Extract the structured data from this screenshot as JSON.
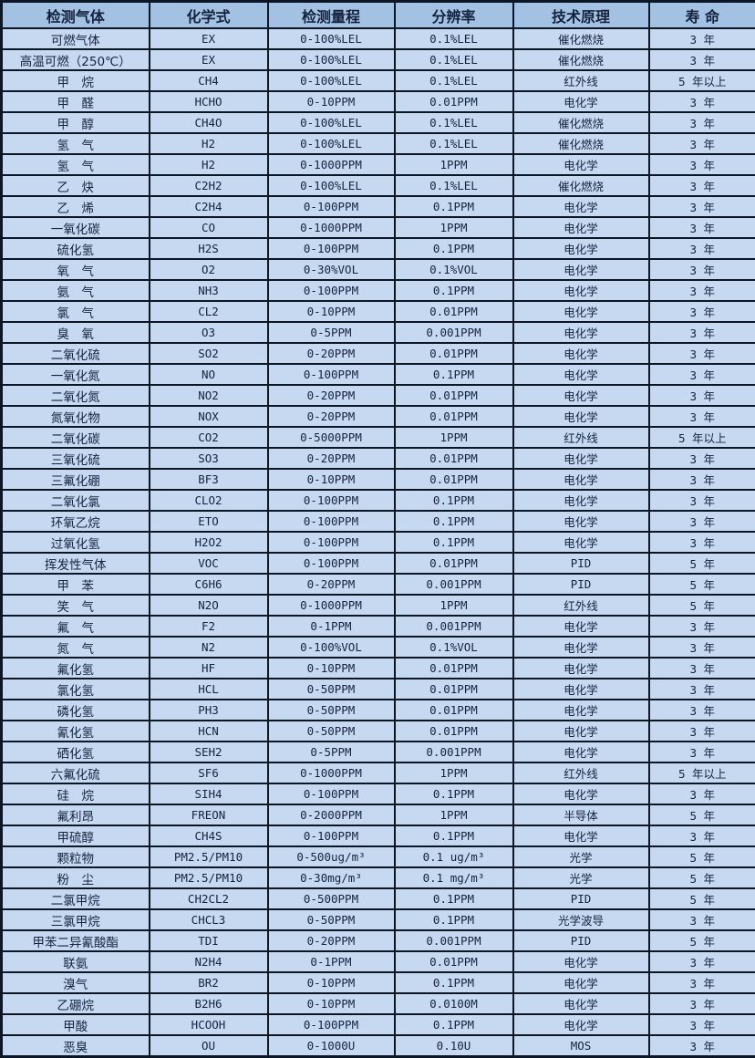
{
  "colors": {
    "header_bg": "#a3c2e3",
    "row_bg": "#c6d9f1",
    "border": "#0b1626",
    "text": "#16233f"
  },
  "table": {
    "columns": [
      "检测气体",
      "化学式",
      "检测量程",
      "分辨率",
      "技术原理",
      "寿  命"
    ],
    "rows": [
      [
        "可燃气体",
        "EX",
        "0-100%LEL",
        "0.1%LEL",
        "催化燃烧",
        "3 年"
      ],
      [
        "高温可燃（250℃）",
        "EX",
        "0-100%LEL",
        "0.1%LEL",
        "催化燃烧",
        "3 年"
      ],
      [
        "甲　烷",
        "CH4",
        "0-100%LEL",
        "0.1%LEL",
        "红外线",
        "5 年以上"
      ],
      [
        "甲　醛",
        "HCHO",
        "0-10PPM",
        "0.01PPM",
        "电化学",
        "3 年"
      ],
      [
        "甲　醇",
        "CH4O",
        "0-100%LEL",
        "0.1%LEL",
        "催化燃烧",
        "3 年"
      ],
      [
        "氢　气",
        "H2",
        "0-100%LEL",
        "0.1%LEL",
        "催化燃烧",
        "3 年"
      ],
      [
        "氢　气",
        "H2",
        "0-1000PPM",
        "1PPM",
        "电化学",
        "3 年"
      ],
      [
        "乙　炔",
        "C2H2",
        "0-100%LEL",
        "0.1%LEL",
        "催化燃烧",
        "3 年"
      ],
      [
        "乙　烯",
        "C2H4",
        "0-100PPM",
        "0.1PPM",
        "电化学",
        "3 年"
      ],
      [
        "一氧化碳",
        "CO",
        "0-1000PPM",
        "1PPM",
        "电化学",
        "3 年"
      ],
      [
        "硫化氢",
        "H2S",
        "0-100PPM",
        "0.1PPM",
        "电化学",
        "3 年"
      ],
      [
        "氧　气",
        "O2",
        "0-30%VOL",
        "0.1%VOL",
        "电化学",
        "3 年"
      ],
      [
        "氨　气",
        "NH3",
        "0-100PPM",
        "0.1PPM",
        "电化学",
        "3 年"
      ],
      [
        "氯　气",
        "CL2",
        "0-10PPM",
        "0.01PPM",
        "电化学",
        "3 年"
      ],
      [
        "臭　氧",
        "O3",
        "0-5PPM",
        "0.001PPM",
        "电化学",
        "3 年"
      ],
      [
        "二氧化硫",
        "SO2",
        "0-20PPM",
        "0.01PPM",
        "电化学",
        "3 年"
      ],
      [
        "一氧化氮",
        "NO",
        "0-100PPM",
        "0.1PPM",
        "电化学",
        "3 年"
      ],
      [
        "二氧化氮",
        "NO2",
        "0-20PPM",
        "0.01PPM",
        "电化学",
        "3 年"
      ],
      [
        "氮氧化物",
        "NOX",
        "0-20PPM",
        "0.01PPM",
        "电化学",
        "3 年"
      ],
      [
        "二氧化碳",
        "CO2",
        "0-5000PPM",
        "1PPM",
        "红外线",
        "5 年以上"
      ],
      [
        "三氧化硫",
        "SO3",
        "0-20PPM",
        "0.01PPM",
        "电化学",
        "3 年"
      ],
      [
        "三氟化硼",
        "BF3",
        "0-10PPM",
        "0.01PPM",
        "电化学",
        "3 年"
      ],
      [
        "二氧化氯",
        "CLO2",
        "0-100PPM",
        "0.1PPM",
        "电化学",
        "3 年"
      ],
      [
        "环氧乙烷",
        "ETO",
        "0-100PPM",
        "0.1PPM",
        "电化学",
        "3 年"
      ],
      [
        "过氧化氢",
        "H2O2",
        "0-100PPM",
        "0.1PPM",
        "电化学",
        "3 年"
      ],
      [
        "挥发性气体",
        "VOC",
        "0-100PPM",
        "0.01PPM",
        "PID",
        "5 年"
      ],
      [
        "甲　苯",
        "C6H6",
        "0-20PPM",
        "0.001PPM",
        "PID",
        "5 年"
      ],
      [
        "笑　气",
        "N2O",
        "0-1000PPM",
        "1PPM",
        "红外线",
        "5 年"
      ],
      [
        "氟　气",
        "F2",
        "0-1PPM",
        "0.001PPM",
        "电化学",
        "3 年"
      ],
      [
        "氮　气",
        "N2",
        "0-100%VOL",
        "0.1%VOL",
        "电化学",
        "3 年"
      ],
      [
        "氟化氢",
        "HF",
        "0-10PPM",
        "0.01PPM",
        "电化学",
        "3 年"
      ],
      [
        "氯化氢",
        "HCL",
        "0-50PPM",
        "0.01PPM",
        "电化学",
        "3 年"
      ],
      [
        "磷化氢",
        "PH3",
        "0-50PPM",
        "0.01PPM",
        "电化学",
        "3 年"
      ],
      [
        "氰化氢",
        "HCN",
        "0-50PPM",
        "0.01PPM",
        "电化学",
        "3 年"
      ],
      [
        "硒化氢",
        "SEH2",
        "0-5PPM",
        "0.001PPM",
        "电化学",
        "3 年"
      ],
      [
        "六氟化硫",
        "SF6",
        "0-1000PPM",
        "1PPM",
        "红外线",
        "5 年以上"
      ],
      [
        "硅　烷",
        "SIH4",
        "0-100PPM",
        "0.1PPM",
        "电化学",
        "3 年"
      ],
      [
        "氟利昂",
        "FREON",
        "0-2000PPM",
        "1PPM",
        "半导体",
        "5 年"
      ],
      [
        "甲硫醇",
        "CH4S",
        "0-100PPM",
        "0.1PPM",
        "电化学",
        "3 年"
      ],
      [
        "颗粒物",
        "PM2.5/PM10",
        "0-500ug/m³",
        "0.1 ug/m³",
        "光学",
        "5 年"
      ],
      [
        "粉　尘",
        "PM2.5/PM10",
        "0-30mg/m³",
        "0.1 mg/m³",
        "光学",
        "5 年"
      ],
      [
        "二氯甲烷",
        "CH2CL2",
        "0-500PPM",
        "0.1PPM",
        "PID",
        "5 年"
      ],
      [
        "三氯甲烷",
        "CHCL3",
        "0-50PPM",
        "0.1PPM",
        "光学波导",
        "3 年"
      ],
      [
        "甲苯二异氰酸酯",
        "TDI",
        "0-20PPM",
        "0.001PPM",
        "PID",
        "5 年"
      ],
      [
        "联氨",
        "N2H4",
        "0-1PPM",
        "0.01PPM",
        "电化学",
        "3 年"
      ],
      [
        "溴气",
        "BR2",
        "0-10PPM",
        "0.1PPM",
        "电化学",
        "3 年"
      ],
      [
        "乙硼烷",
        "B2H6",
        "0-10PPM",
        "0.0100M",
        "电化学",
        "3 年"
      ],
      [
        "甲酸",
        "HCOOH",
        "0-100PPM",
        "0.1PPM",
        "电化学",
        "3 年"
      ],
      [
        "恶臭",
        "OU",
        "0-1000U",
        "0.10U",
        "MOS",
        "3 年"
      ]
    ]
  }
}
